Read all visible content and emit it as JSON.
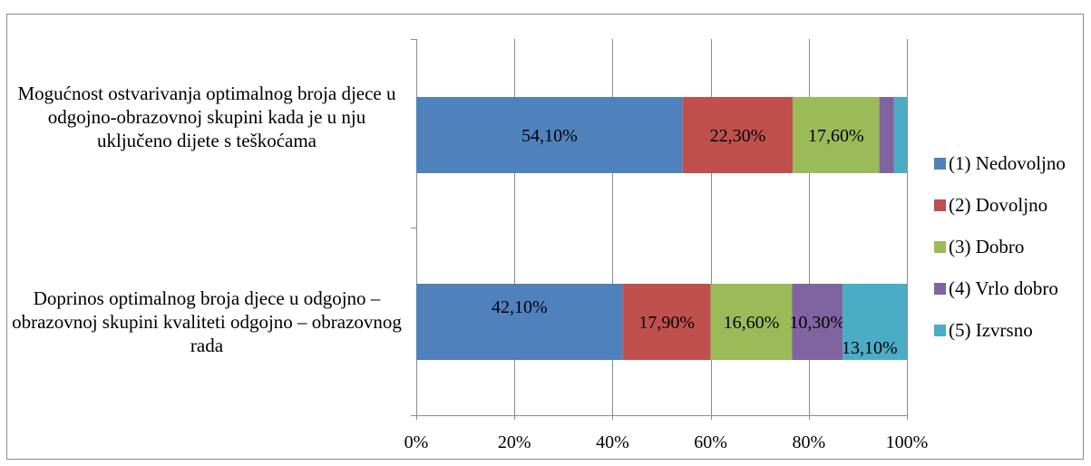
{
  "chart_data": {
    "type": "bar",
    "orientation": "horizontal",
    "stacked": true,
    "percent_stacked": true,
    "categories": [
      "Mogućnost ostvarivanja optimalnog broja djece u odgojno-obrazovnoj skupini kada je u nju uključeno dijete s teškoćama",
      "Doprinos optimalnog broja djece u odgojno – obrazovnoj skupini kvaliteti odgojno – obrazovnog rada"
    ],
    "series": [
      {
        "name": "(1) Nedovoljno",
        "color": "#4f81bd",
        "values": [
          54.1,
          42.1
        ],
        "labels": [
          "54,10%",
          "42,10%"
        ]
      },
      {
        "name": "(2) Dovoljno",
        "color": "#c0504d",
        "values": [
          22.3,
          17.9
        ],
        "labels": [
          "22,30%",
          "17,90%"
        ]
      },
      {
        "name": "(3) Dobro",
        "color": "#9bbb59",
        "values": [
          17.6,
          16.6
        ],
        "labels": [
          "17,60%",
          "16,60%"
        ]
      },
      {
        "name": "(4) Vrlo dobro",
        "color": "#8064a2",
        "values": [
          3.0,
          10.3
        ],
        "labels": [
          "",
          "10,30%"
        ]
      },
      {
        "name": "(5) Izvrsno",
        "color": "#4bacc6",
        "values": [
          2.6,
          13.1
        ],
        "labels": [
          "",
          "13,10%"
        ]
      }
    ],
    "xlim": [
      0,
      100
    ],
    "xticks": [
      "0%",
      "20%",
      "40%",
      "60%",
      "80%",
      "100%"
    ],
    "grid": true,
    "legend_position": "right",
    "title": "",
    "xlabel": "",
    "ylabel": ""
  }
}
